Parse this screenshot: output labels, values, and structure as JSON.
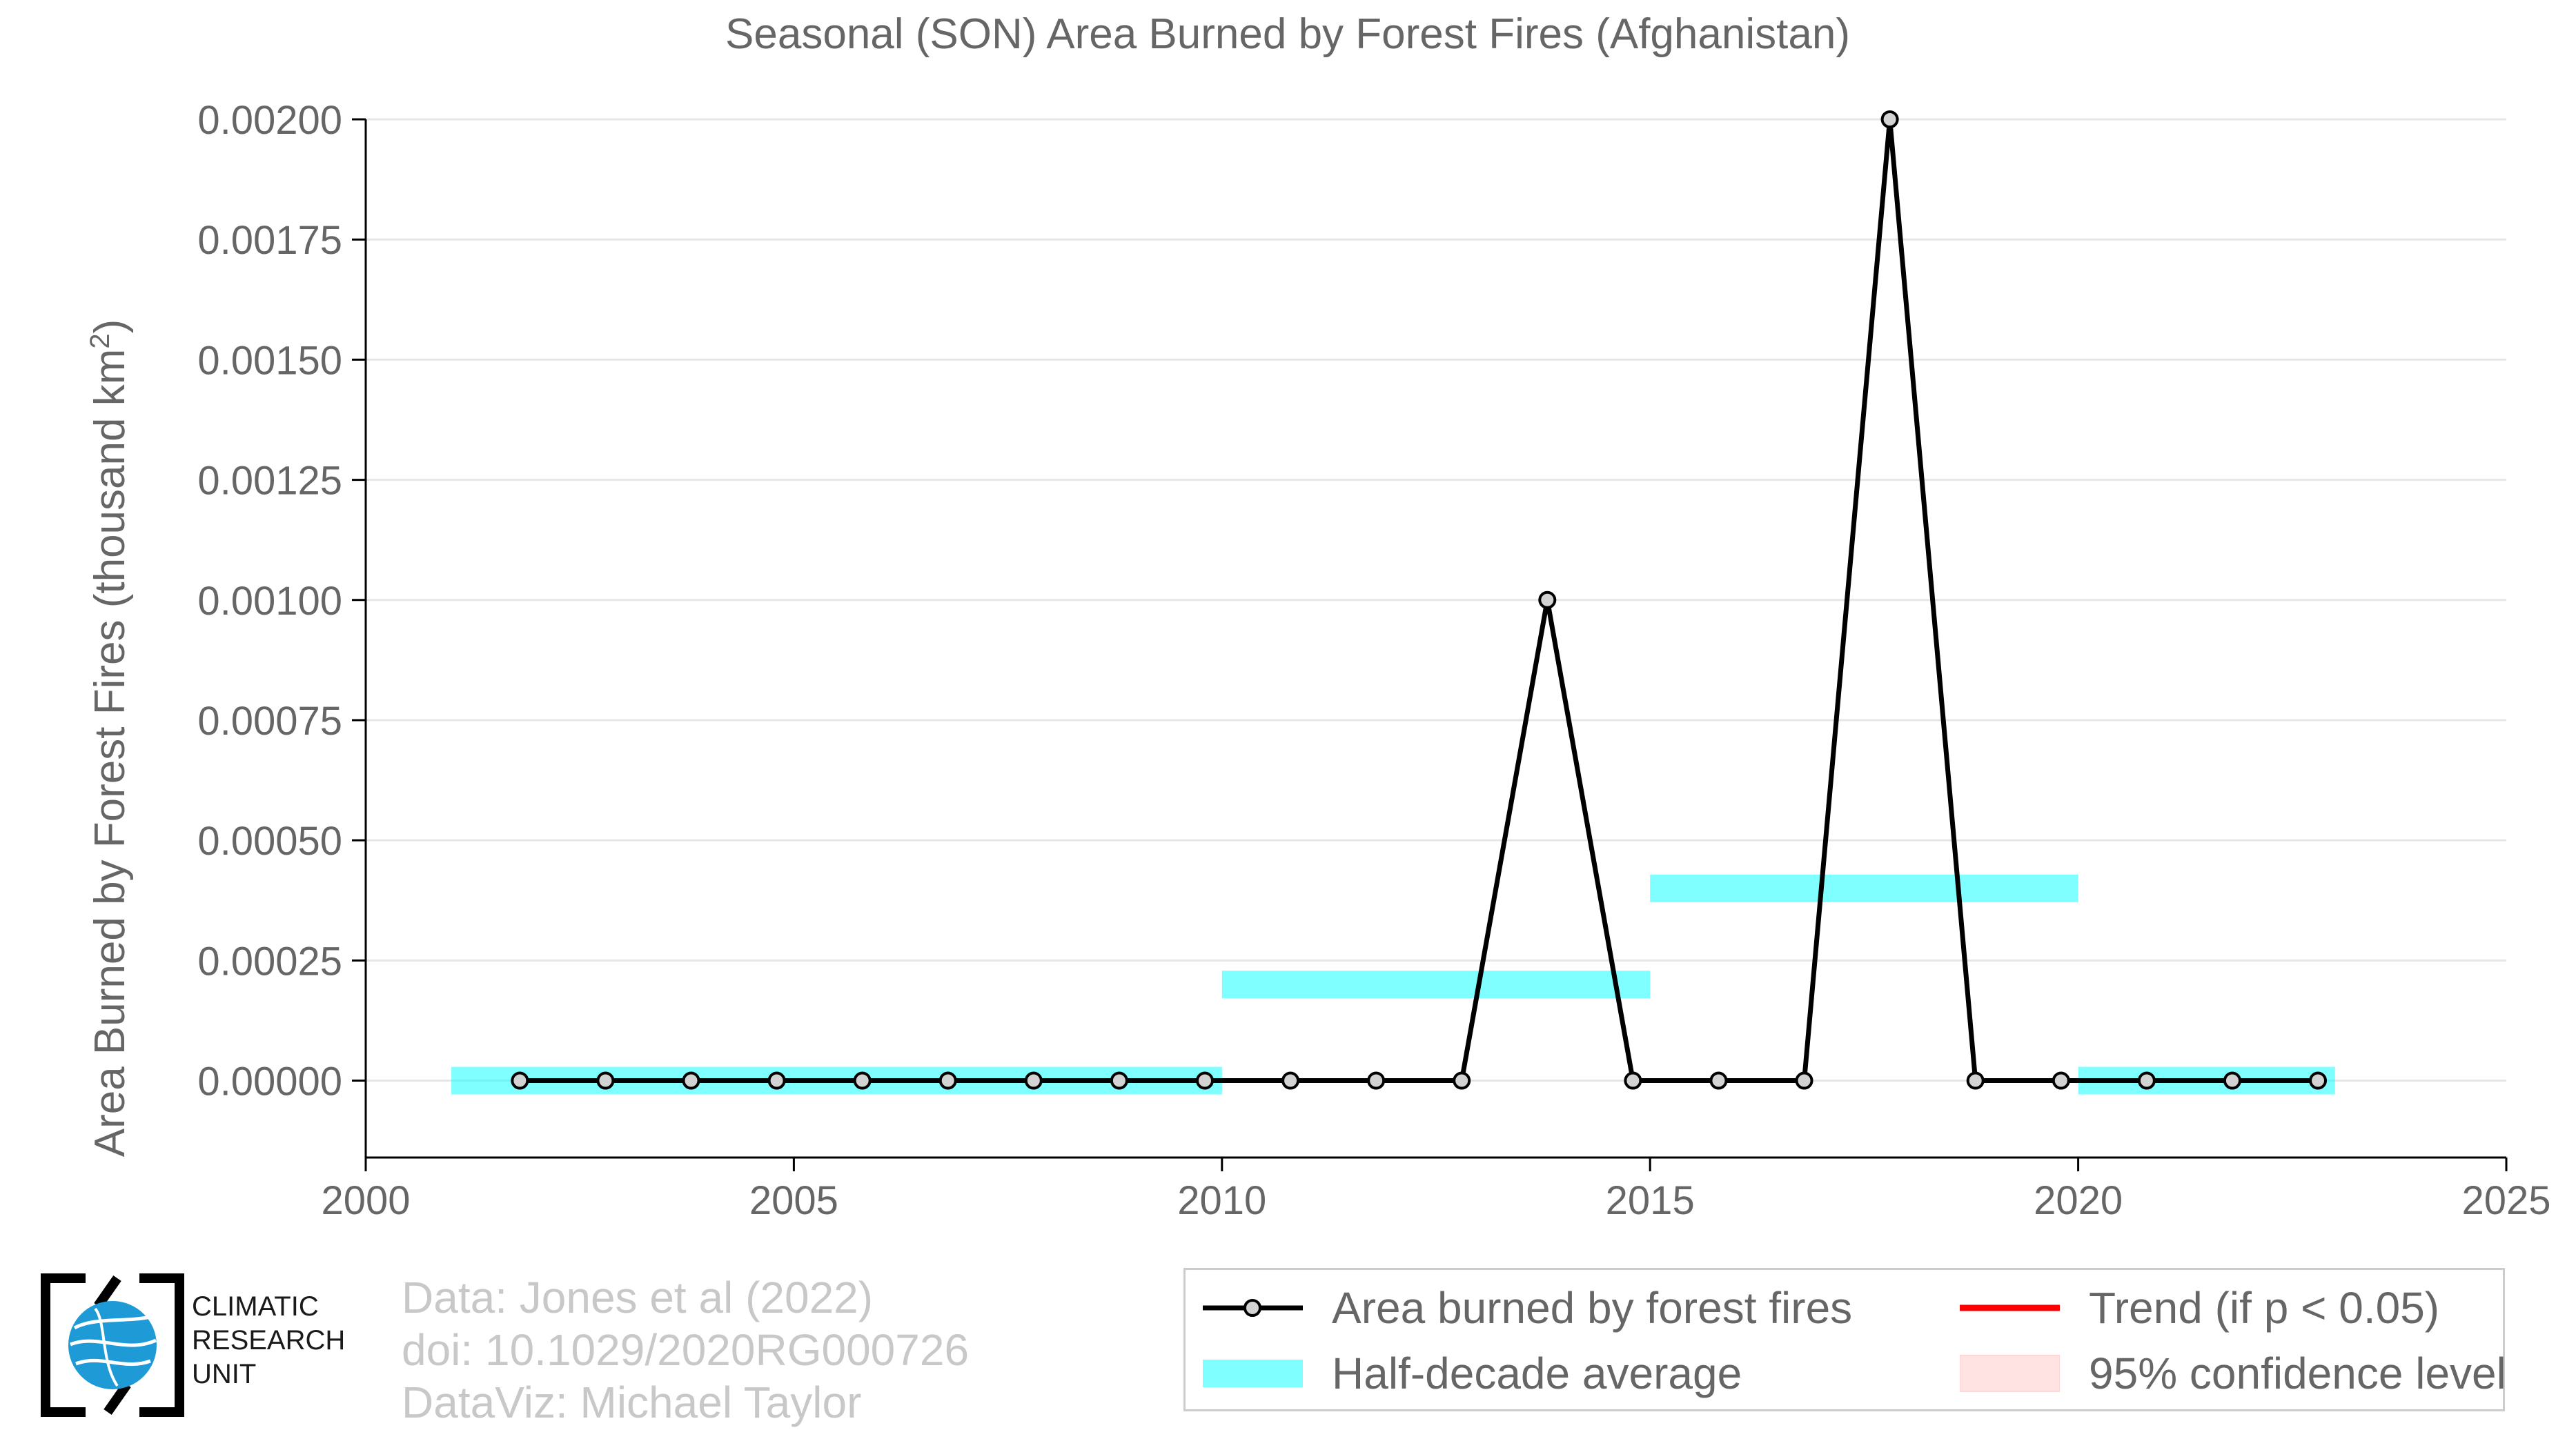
{
  "chart_data": {
    "type": "line",
    "title": "Seasonal (SON) Area Burned by Forest Fires (Afghanistan)",
    "ylabel": "Area Burned by Forest Fires (thousand km",
    "ylabel_superscript": "2",
    "ylabel_suffix": ")",
    "xlabel": "",
    "xlim": [
      2000,
      2025
    ],
    "ylim": [
      -0.00016,
      0.002
    ],
    "xticks": [
      2000,
      2005,
      2010,
      2015,
      2020,
      2025
    ],
    "yticks": [
      0,
      0.00025,
      0.0005,
      0.00075,
      0.001,
      0.00125,
      0.0015,
      0.00175,
      0.002
    ],
    "ytick_labels": [
      "0.00000",
      "0.00025",
      "0.00050",
      "0.00075",
      "0.00100",
      "0.00125",
      "0.00150",
      "0.00175",
      "0.00200"
    ],
    "grid": "horizontal",
    "series": [
      {
        "name": "Area burned by forest fires",
        "type": "line",
        "color": "#000000",
        "marker_fill": "#d3d3d3",
        "x": [
          2001.8,
          2002.8,
          2003.8,
          2004.8,
          2005.8,
          2006.8,
          2007.8,
          2008.8,
          2009.8,
          2010.8,
          2011.8,
          2012.8,
          2013.8,
          2014.8,
          2015.8,
          2016.8,
          2017.8,
          2018.8,
          2019.8,
          2020.8,
          2021.8,
          2022.8
        ],
        "y": [
          0,
          0,
          0,
          0,
          0,
          0,
          0,
          0,
          0,
          0,
          0,
          0,
          0.001,
          0,
          0,
          0,
          0.002,
          0,
          0,
          0,
          0,
          0
        ]
      },
      {
        "name": "Half-decade average",
        "type": "step-bar",
        "color": "#00ffff",
        "opacity": 0.5,
        "segments": [
          {
            "x0": 2001,
            "x1": 2010,
            "y": 0
          },
          {
            "x0": 2010,
            "x1": 2015,
            "y": 0.0002
          },
          {
            "x0": 2015,
            "x1": 2020,
            "y": 0.0004
          },
          {
            "x0": 2020,
            "x1": 2023,
            "y": 0
          }
        ]
      }
    ]
  },
  "legend": {
    "items": [
      {
        "label": "Area burned by forest fires",
        "key": "line-marker",
        "color": "#000000"
      },
      {
        "label": "Trend (if p < 0.05)",
        "key": "line",
        "color": "#ff0000"
      },
      {
        "label": "Half-decade average",
        "key": "band",
        "color": "#00ffff"
      },
      {
        "label": "95% confidence level",
        "key": "band",
        "color": "#ffc0c0"
      }
    ]
  },
  "logo": {
    "line1": "CLIMATIC",
    "line2": "RESEARCH",
    "line3": "UNIT",
    "colors": {
      "globe": "#1e9ad6",
      "frame": "#000000"
    }
  },
  "credits": {
    "line1": "Data: Jones et al (2022)",
    "line2": "doi: 10.1029/2020RG000726",
    "line3": "DataViz: Michael Taylor"
  }
}
